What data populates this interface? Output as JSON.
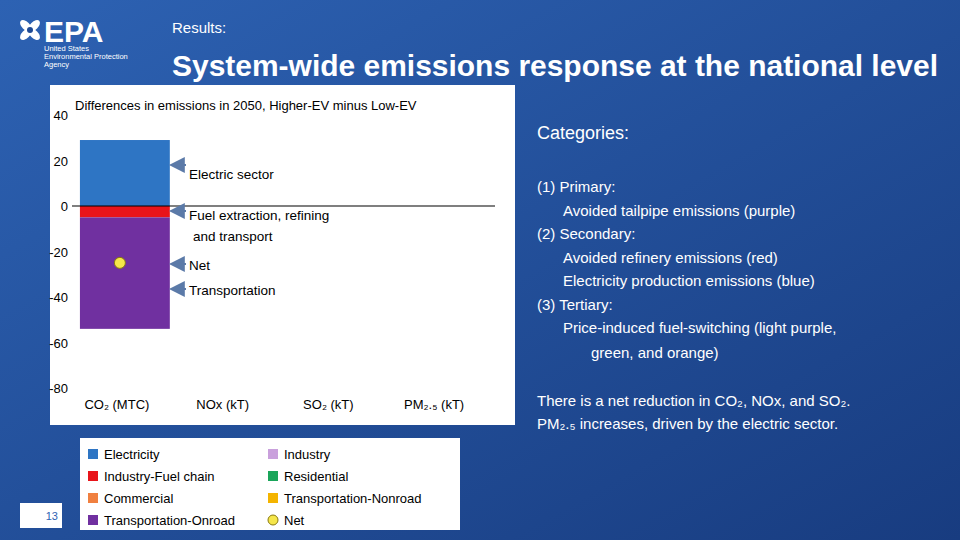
{
  "logo": {
    "acronym": "EPA",
    "lines": [
      "United States",
      "Environmental Protection",
      "Agency"
    ]
  },
  "header": "Results:",
  "title": "System-wide emissions response at the national level",
  "page_number": "13",
  "side_text": {
    "heading": "Categories:",
    "items": [
      {
        "heading": "(1) Primary:",
        "lines": [
          [
            "Avoided tailpipe emissions (purple)"
          ]
        ]
      },
      {
        "heading": "(2) Secondary:",
        "lines": [
          [
            "Avoided refinery emissions (red)"
          ],
          [
            "Electricity production emissions (blue)"
          ]
        ]
      },
      {
        "heading": "(3) Tertiary:",
        "lines": [
          [
            "Price-induced fuel-switching (light purple,",
            "green, and orange)"
          ]
        ]
      }
    ],
    "summary": [
      "There is a net reduction in CO₂, NOx, and SO₂.",
      "PM₂.₅ increases, driven by the electric sector."
    ]
  },
  "chart_data": {
    "type": "bar",
    "title": "Differences in emissions in 2050, Higher-EV minus Low-EV",
    "categories": [
      "CO₂ (MTC)",
      "NOx (kT)",
      "SO₂ (kT)",
      "PM₂.₅ (kT)"
    ],
    "stacked": true,
    "grid": false,
    "legend": "bottom",
    "ylim": [
      -80,
      40
    ],
    "yticks": [
      -80,
      -60,
      -40,
      -20,
      0,
      20,
      40
    ],
    "series": [
      {
        "name": "Electricity",
        "color": "#2e75c4",
        "values": [
          29,
          null,
          null,
          null
        ]
      },
      {
        "name": "Industry",
        "color": "#c9a0dc",
        "values": [
          0,
          null,
          null,
          null
        ]
      },
      {
        "name": "Industry-Fuel chain",
        "color": "#e8141a",
        "values": [
          -5,
          null,
          null,
          null
        ]
      },
      {
        "name": "Residential",
        "color": "#1aa55a",
        "values": [
          0,
          null,
          null,
          null
        ]
      },
      {
        "name": "Commercial",
        "color": "#f08040",
        "values": [
          0,
          null,
          null,
          null
        ]
      },
      {
        "name": "Transportation-Nonroad",
        "color": "#f4b400",
        "values": [
          0,
          null,
          null,
          null
        ]
      },
      {
        "name": "Transportation-Onroad",
        "color": "#7030a0",
        "values": [
          -49,
          null,
          null,
          null
        ]
      },
      {
        "name": "Net",
        "type": "scatter",
        "marker": "circle",
        "color": "#f5e64a",
        "values": [
          -25,
          null,
          null,
          null
        ]
      }
    ],
    "annotations": [
      [
        "Electric sector"
      ],
      [
        "Fuel extraction, refining",
        "and transport"
      ],
      [
        "Net"
      ],
      [
        "Transportation"
      ]
    ]
  }
}
